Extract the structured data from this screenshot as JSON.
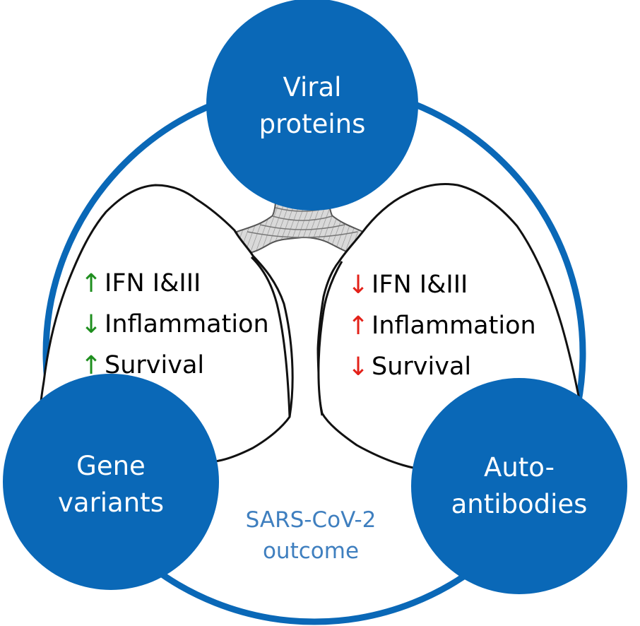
{
  "colors": {
    "node_fill": "#0a68b7",
    "ring_stroke": "#0a68b7",
    "beneficial_arrow": "#1e8e1e",
    "detrimental_arrow": "#e32119",
    "outcome_text": "#3f7fbf"
  },
  "nodes": {
    "viral": {
      "line1": "Viral",
      "line2": "proteins"
    },
    "gene": {
      "line1": "Gene",
      "line2": "variants"
    },
    "auto": {
      "line1": "Auto-",
      "line2": "antibodies"
    }
  },
  "left_effects": [
    {
      "direction": "up",
      "arrow": "↑",
      "label": "IFN I&III"
    },
    {
      "direction": "down",
      "arrow": "↓",
      "label": "Inflammation"
    },
    {
      "direction": "up",
      "arrow": "↑",
      "label": "Survival"
    }
  ],
  "right_effects": [
    {
      "direction": "down",
      "arrow": "↓",
      "label": "IFN I&III"
    },
    {
      "direction": "up",
      "arrow": "↑",
      "label": "Inflammation"
    },
    {
      "direction": "down",
      "arrow": "↓",
      "label": "Survival"
    }
  ],
  "outcome": {
    "line1": "SARS-CoV-2",
    "line2": "outcome"
  }
}
